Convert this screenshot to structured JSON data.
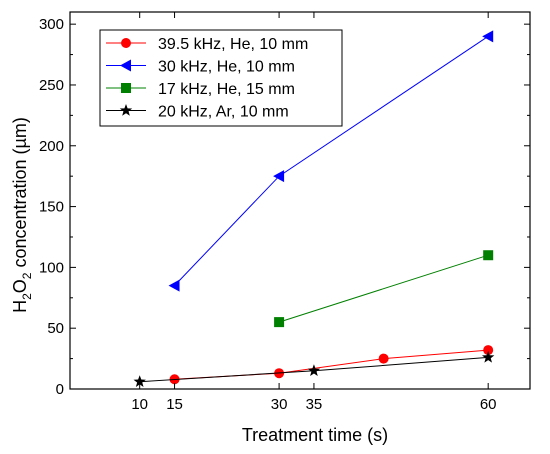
{
  "chart_data": {
    "type": "line",
    "xlabel": "Treatment  time (s)",
    "ylabel": "H2O2 concentration (µm)",
    "ylabel_parts": {
      "a": "H",
      "sub1": "2",
      "b": "O",
      "sub2": "2",
      "rest": " concentration (µm)"
    },
    "xlim": [
      0,
      66
    ],
    "ylim": [
      0,
      310
    ],
    "x_ticks": [
      10,
      15,
      30,
      35,
      60
    ],
    "y_ticks": [
      0,
      50,
      100,
      150,
      200,
      250,
      300
    ],
    "grid": false,
    "legend_position": "top-left",
    "series": [
      {
        "name": "39.5 kHz, He, 10 mm",
        "color": "#ff0000",
        "marker": "circle",
        "x": [
          15,
          30,
          45,
          60
        ],
        "y": [
          8,
          13,
          25,
          32
        ]
      },
      {
        "name": "30 kHz, He, 10 mm",
        "color": "#0000ff",
        "marker": "triangle-left",
        "x": [
          15,
          30,
          60
        ],
        "y": [
          85,
          175,
          290
        ]
      },
      {
        "name": "17 kHz, He, 15 mm",
        "color": "#008000",
        "marker": "square",
        "x": [
          30,
          60
        ],
        "y": [
          55,
          110
        ]
      },
      {
        "name": "20 kHz, Ar, 10 mm",
        "color": "#000000",
        "marker": "star",
        "x": [
          10,
          35,
          60
        ],
        "y": [
          6,
          15,
          26
        ]
      }
    ]
  }
}
